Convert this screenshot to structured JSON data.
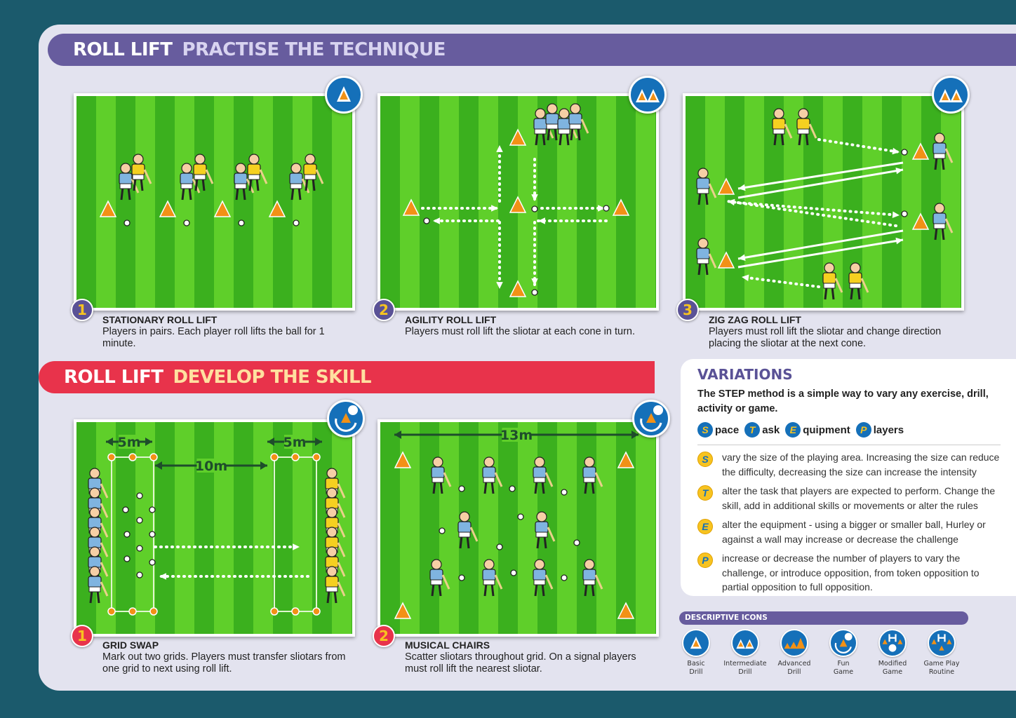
{
  "section1": {
    "title_a": "ROLL LIFT",
    "title_b": "PRACTISE THE TECHNIQUE"
  },
  "section2": {
    "title_a": "ROLL LIFT",
    "title_b": "DEVELOP THE SKILL"
  },
  "drills_practise": [
    {
      "number": "1",
      "title": "STATIONARY ROLL LIFT",
      "text": "Players in pairs. Each player roll lifts the ball for 1 minute.",
      "icon": "basic-drill"
    },
    {
      "number": "2",
      "title": "AGILITY ROLL LIFT",
      "text": "Players must roll lift the sliotar at each cone in turn.",
      "icon": "intermediate-drill"
    },
    {
      "number": "3",
      "title": "ZIG ZAG ROLL LIFT",
      "text": "Players must roll lift the sliotar and change direction placing the sliotar at the next cone.",
      "icon": "intermediate-drill"
    }
  ],
  "drills_develop": [
    {
      "number": "1",
      "title": "GRID SWAP",
      "text": "Mark out two grids. Players must transfer sliotars from one grid to next using roll lift.",
      "icon": "fun-game",
      "labels": [
        "5m",
        "10m",
        "5m"
      ]
    },
    {
      "number": "2",
      "title": "MUSICAL CHAIRS",
      "text": "Scatter sliotars throughout grid. On a signal players must roll lift the nearest sliotar.",
      "icon": "fun-game",
      "labels": [
        "13m"
      ]
    }
  ],
  "variations": {
    "title": "VARIATIONS",
    "intro": "The STEP method is a simple way to vary any exercise, drill, activity or game.",
    "step": [
      {
        "letter": "S",
        "word": "pace"
      },
      {
        "letter": "T",
        "word": "ask"
      },
      {
        "letter": "E",
        "word": "quipment"
      },
      {
        "letter": "P",
        "word": "layers"
      }
    ],
    "items": [
      {
        "letter": "S",
        "text": "vary the size of the playing area. Increasing the size can reduce the difficulty, decreasing the size can increase the intensity"
      },
      {
        "letter": "T",
        "text": "alter the task that players are expected to perform. Change the skill, add in additional skills or movements or alter the rules"
      },
      {
        "letter": "E",
        "text": "alter the equipment - using a bigger or smaller ball, Hurley or against a wall may increase or decrease the challenge"
      },
      {
        "letter": "P",
        "text": "increase or decrease the number of players to vary the challenge, or introduce opposition, from token opposition to partial opposition to full opposition."
      }
    ]
  },
  "descriptive_icons": {
    "title": "DESCRIPTIVE ICONS",
    "items": [
      {
        "l1": "Basic",
        "l2": "Drill",
        "icon": "basic-drill"
      },
      {
        "l1": "Intermediate",
        "l2": "Drill",
        "icon": "intermediate-drill"
      },
      {
        "l1": "Advanced",
        "l2": "Drill",
        "icon": "advanced-drill"
      },
      {
        "l1": "Fun",
        "l2": "Game",
        "icon": "fun-game"
      },
      {
        "l1": "Modified",
        "l2": "Game",
        "icon": "modified-game"
      },
      {
        "l1": "Game Play",
        "l2": "Routine",
        "icon": "game-play-routine"
      }
    ]
  },
  "colors": {
    "background": "#1b5a6c",
    "panel": "#e3e3ef",
    "purple": "#675c9e",
    "red": "#e8334b",
    "icon_blue": "#1570b9",
    "cone": "#f29116",
    "grass": "#5fcf2a",
    "grass_dark": "#3bb01e",
    "jersey_blue": "#7fb4e0",
    "jersey_yellow": "#f5d020"
  }
}
